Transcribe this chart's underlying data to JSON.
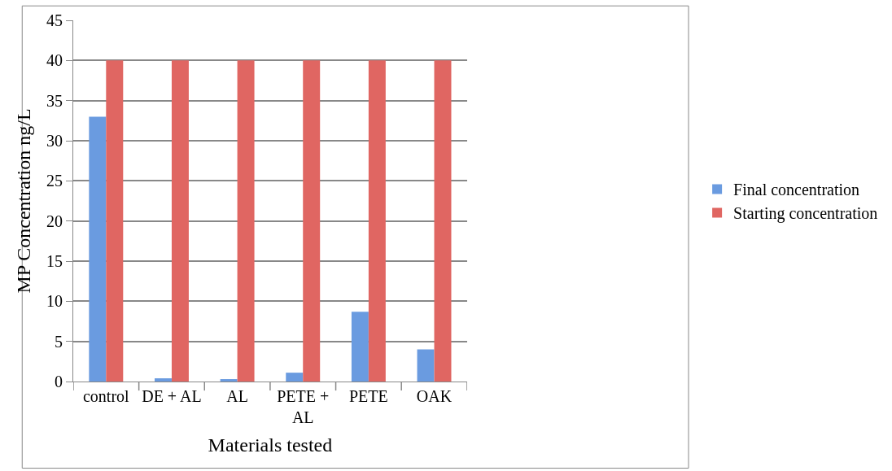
{
  "chart_data": {
    "type": "bar",
    "xlabel": "Materials tested",
    "ylabel": "MP Concentration ng/L",
    "categories": [
      "control",
      "DE + AL",
      "AL",
      "PETE + AL",
      "PETE",
      "OAK"
    ],
    "series": [
      {
        "name": "Final concentration",
        "color": "#6a9be0",
        "values": [
          33,
          0.4,
          0.3,
          1.1,
          8.7,
          4.0
        ]
      },
      {
        "name": "Starting concentration",
        "color": "#e06662",
        "values": [
          40,
          40,
          40,
          40,
          40,
          40
        ]
      }
    ],
    "ylim": [
      0,
      45
    ],
    "yticks": [
      0,
      5,
      10,
      15,
      20,
      25,
      30,
      35,
      40,
      45
    ],
    "grid": "y",
    "legend": "right"
  }
}
